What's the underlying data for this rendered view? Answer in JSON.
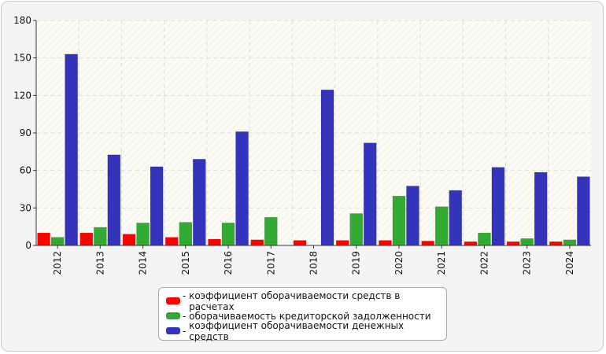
{
  "chart_data": {
    "type": "bar",
    "categories": [
      "2012",
      "2013",
      "2014",
      "2015",
      "2016",
      "2017",
      "2018",
      "2019",
      "2020",
      "2021",
      "2022",
      "2023",
      "2024"
    ],
    "series": [
      {
        "name": "коэффициент оборачиваемости средств в расчетах",
        "color": "#ff0000",
        "values": [
          10,
          10,
          9,
          6.5,
          5,
          4.5,
          4,
          4,
          4,
          3.5,
          3,
          3,
          3
        ]
      },
      {
        "name": "оборачиваемость кредиторской задолженности",
        "color": "#33aa33",
        "values": [
          6.5,
          14.5,
          18,
          18.5,
          18,
          22.5,
          0,
          25.5,
          39.5,
          31,
          10,
          5.5,
          4.5
        ]
      },
      {
        "name": "коэффициент оборачиваемости денежных средств",
        "color": "#3333bb",
        "values": [
          153,
          72.5,
          63,
          69,
          91,
          0,
          124.5,
          82,
          47.5,
          44,
          62.5,
          58.5,
          55
        ]
      }
    ],
    "yticks": [
      "0",
      "30",
      "60",
      "90",
      "120",
      "150",
      "180"
    ],
    "ylim": [
      0,
      180
    ],
    "grid": true,
    "legend_position": "bottom"
  }
}
